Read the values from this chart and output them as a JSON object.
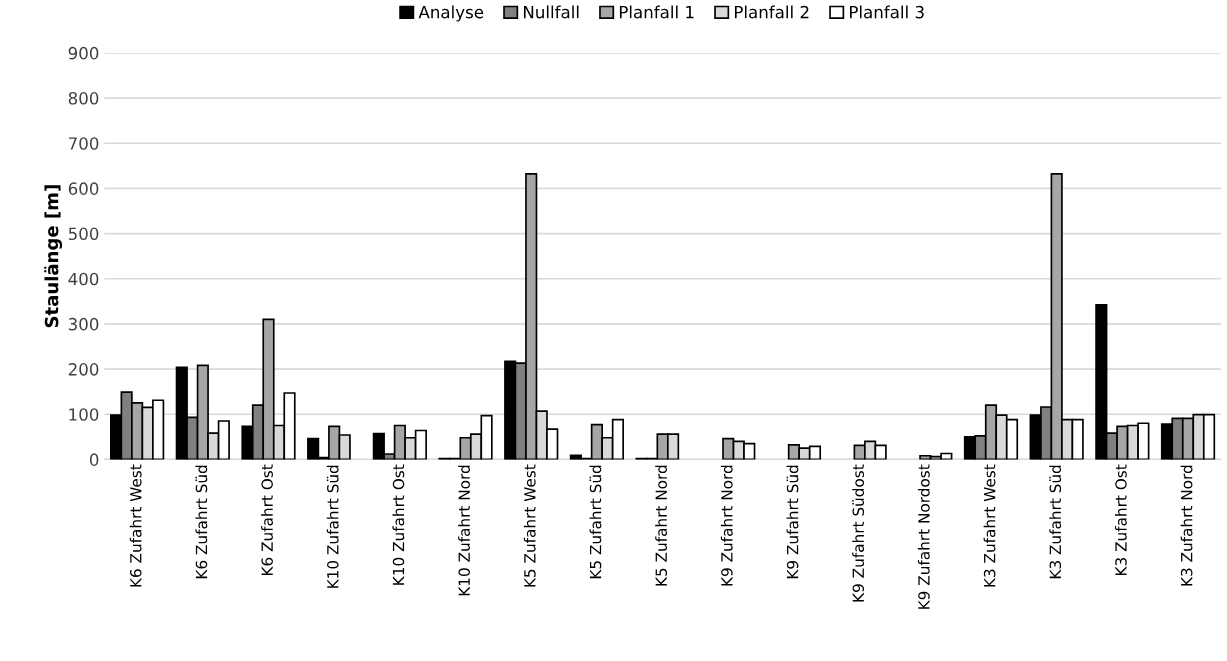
{
  "chart_data": {
    "type": "bar",
    "ylabel": "Staulänge [m]",
    "categories": [
      "K6 Zufahrt West",
      "K6 Zufahrt Süd",
      "K6 Zufahrt Ost",
      "K10 Zufahrt Süd",
      "K10 Zufahrt Ost",
      "K10 Zufahrt Nord",
      "K5 Zufahrt West",
      "K5 Zufahrt Süd",
      "K5 Zufahrt Nord",
      "K9 Zufahrt Nord",
      "K9 Zufahrt Süd",
      "K9 Zufahrt Südost",
      "K9 Zufahrt Nordost",
      "K3 Zufahrt West",
      "K3 Zufahrt Süd",
      "K3 Zufahrt Ost",
      "K3 Zufahrt Nord"
    ],
    "series": [
      {
        "name": "Analyse",
        "color": "#000000",
        "values": [
          98,
          204,
          73,
          46,
          57,
          2,
          217,
          9,
          2,
          null,
          null,
          null,
          null,
          50,
          98,
          342,
          78
        ]
      },
      {
        "name": "Nullfall",
        "color": "#808080",
        "values": [
          149,
          93,
          120,
          4,
          12,
          2,
          213,
          2,
          2,
          null,
          null,
          null,
          null,
          52,
          116,
          58,
          91
        ]
      },
      {
        "name": "Planfall 1",
        "color": "#a6a6a6",
        "values": [
          125,
          208,
          310,
          73,
          75,
          48,
          632,
          77,
          56,
          46,
          32,
          31,
          8,
          120,
          632,
          73,
          91
        ]
      },
      {
        "name": "Planfall 2",
        "color": "#d9d9d9",
        "values": [
          115,
          58,
          75,
          54,
          48,
          56,
          107,
          48,
          56,
          40,
          25,
          40,
          6,
          98,
          88,
          75,
          99
        ]
      },
      {
        "name": "Planfall 3",
        "color": "#ffffff",
        "values": [
          131,
          85,
          147,
          null,
          64,
          97,
          67,
          88,
          null,
          35,
          29,
          31,
          13,
          88,
          88,
          80,
          99
        ]
      }
    ],
    "ylim": [
      0,
      900
    ],
    "yticks": [
      0,
      100,
      200,
      300,
      400,
      500,
      600,
      700,
      800,
      900
    ],
    "grid": "y",
    "legend": "top"
  }
}
